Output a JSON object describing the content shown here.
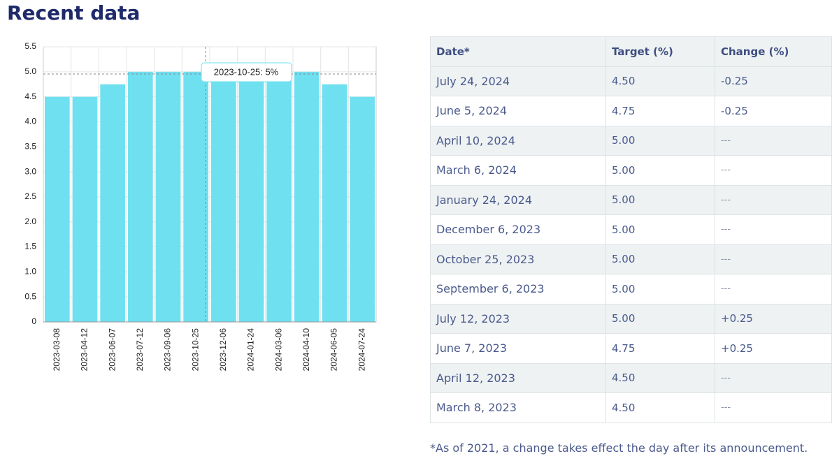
{
  "heading": "Recent data",
  "chart_data": {
    "type": "bar",
    "categories": [
      "2023-03-08",
      "2023-04-12",
      "2023-06-07",
      "2023-07-12",
      "2023-09-06",
      "2023-10-25",
      "2023-12-06",
      "2024-01-24",
      "2024-03-06",
      "2024-04-10",
      "2024-06-05",
      "2024-07-24"
    ],
    "values": [
      4.5,
      4.5,
      4.75,
      5,
      5,
      5,
      5,
      5,
      5,
      5,
      4.75,
      4.5
    ],
    "color": "#6fe0f0",
    "ylim": [
      0,
      5.5
    ],
    "yticks": [
      0,
      0.5,
      {
        "value": 1,
        "label": "1.0"
      },
      1.5,
      {
        "value": 2,
        "label": "2.0"
      },
      2.5,
      {
        "value": 3,
        "label": "3.0"
      },
      3.5,
      {
        "value": 4,
        "label": "4.0"
      },
      4.5,
      {
        "value": 5,
        "label": "5.0"
      },
      5.5
    ],
    "grid": true,
    "tooltip": "2023-10-25: 5%"
  },
  "table": {
    "header": [
      "Date*",
      "Target (%)",
      "Change (%)"
    ],
    "rows": [
      [
        "July 24, 2024",
        "4.50",
        "-0.25"
      ],
      [
        "June 5, 2024",
        "4.75",
        "-0.25"
      ],
      [
        "April 10, 2024",
        "5.00",
        "---"
      ],
      [
        "March 6, 2024",
        "5.00",
        "---"
      ],
      [
        "January 24, 2024",
        "5.00",
        "---"
      ],
      [
        "December 6, 2023",
        "5.00",
        "---"
      ],
      [
        "October 25, 2023",
        "5.00",
        "---"
      ],
      [
        "September 6, 2023",
        "5.00",
        "---"
      ],
      [
        "July 12, 2023",
        "5.00",
        "+0.25"
      ],
      [
        "June 7, 2023",
        "4.75",
        "+0.25"
      ],
      [
        "April 12, 2023",
        "4.50",
        "---"
      ],
      [
        "March 8, 2023",
        "4.50",
        "---"
      ]
    ]
  },
  "footnote": "*As of 2021, a change takes effect the day after its announcement."
}
